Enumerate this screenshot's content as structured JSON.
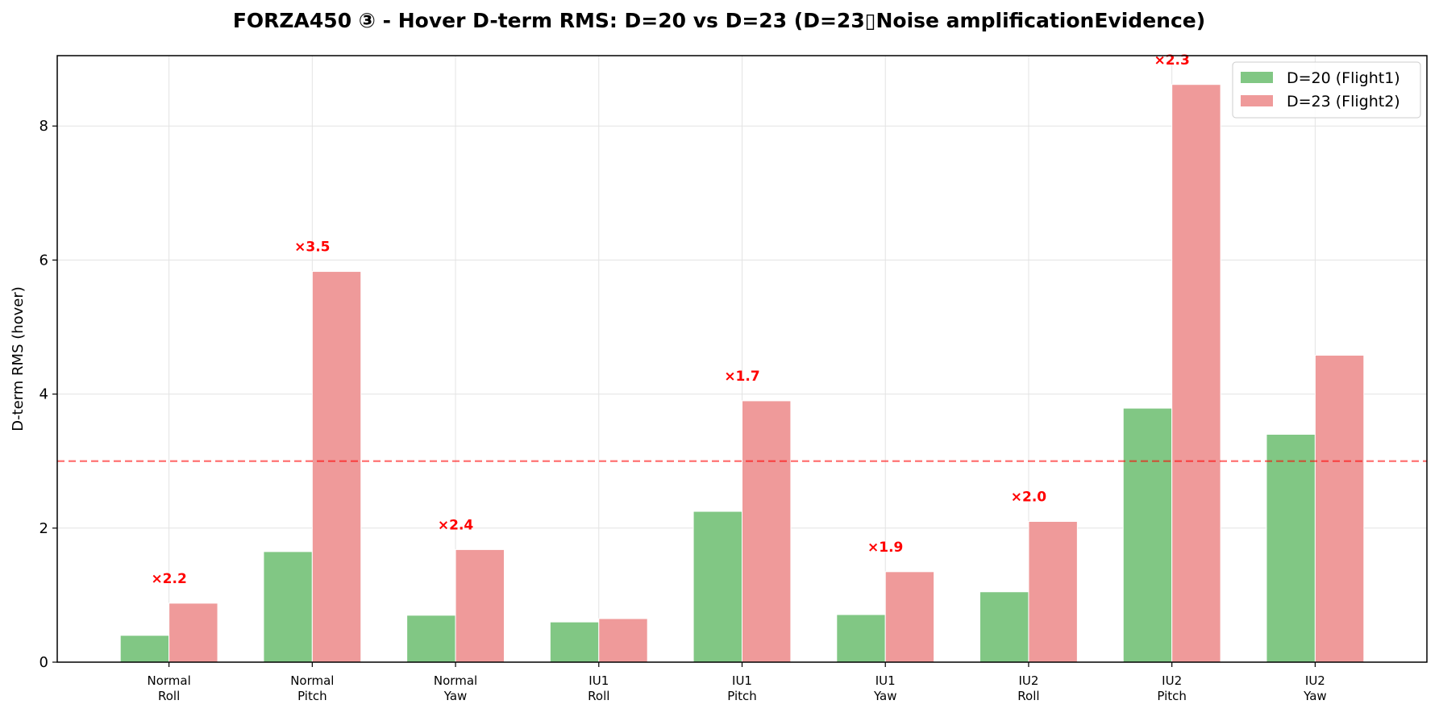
{
  "chart_data": {
    "type": "bar",
    "title": "FORZA450 ③ - Hover D-term RMS: D=20 vs D=23 (D=23▯Noise amplificationEvidence)",
    "xlabel": "",
    "ylabel": "D-term RMS (hover)",
    "ylim": [
      0,
      9.05
    ],
    "yticks": [
      0,
      2,
      4,
      6,
      8
    ],
    "categories": [
      [
        "Normal",
        "Roll"
      ],
      [
        "Normal",
        "Pitch"
      ],
      [
        "Normal",
        "Yaw"
      ],
      [
        "IU1",
        "Roll"
      ],
      [
        "IU1",
        "Pitch"
      ],
      [
        "IU1",
        "Yaw"
      ],
      [
        "IU2",
        "Roll"
      ],
      [
        "IU2",
        "Pitch"
      ],
      [
        "IU2",
        "Yaw"
      ]
    ],
    "series": [
      {
        "name": "D=20 (Flight1)",
        "color": "#81c784",
        "values": [
          0.4,
          1.65,
          0.7,
          0.6,
          2.25,
          0.71,
          1.05,
          3.79,
          3.4
        ]
      },
      {
        "name": "D=23 (Flight2)",
        "color": "#ef9a9a",
        "values": [
          0.88,
          5.83,
          1.68,
          0.65,
          3.9,
          1.35,
          2.1,
          8.62,
          4.58
        ]
      }
    ],
    "annotations": [
      {
        "index": 0,
        "text": "×2.2"
      },
      {
        "index": 1,
        "text": "×3.5"
      },
      {
        "index": 2,
        "text": "×2.4"
      },
      {
        "index": 4,
        "text": "×1.7"
      },
      {
        "index": 5,
        "text": "×1.9"
      },
      {
        "index": 6,
        "text": "×2.0"
      },
      {
        "index": 7,
        "text": "×2.3"
      }
    ],
    "annotation_color": "#ff0000",
    "threshold": {
      "value": 3.0,
      "color": "#ff0000",
      "style": "dashed"
    },
    "grid": true,
    "legend_position": "top-right"
  }
}
